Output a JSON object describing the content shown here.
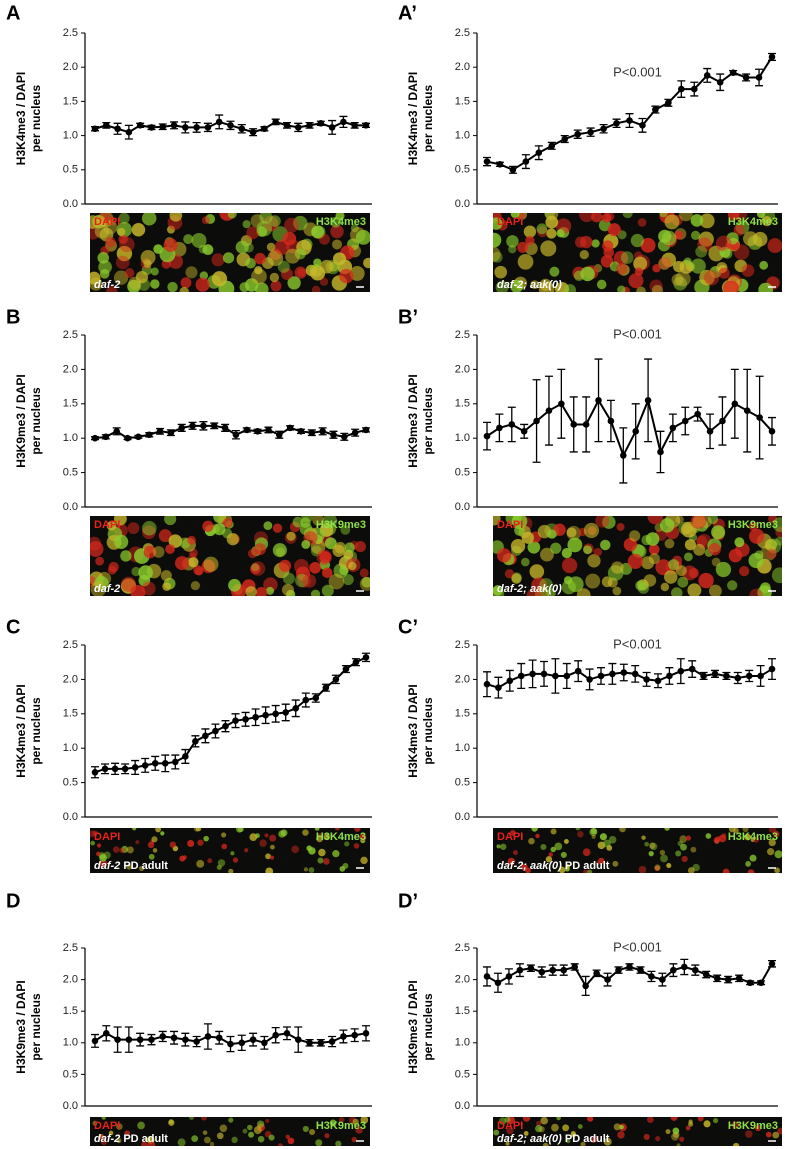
{
  "chart_data": [
    {
      "type": "line",
      "label": "A",
      "ylabel": [
        "H3K4me3 / DAPI",
        "per nucleus"
      ],
      "color": "#000000",
      "ylim": [
        0,
        2.5
      ],
      "yticks": [
        {
          "value": 0,
          "label": "0.0"
        },
        0.5,
        {
          "value": 1,
          "label": "1.0"
        },
        1.5,
        {
          "value": 2,
          "label": "2.0"
        },
        2.5
      ],
      "values": [
        1.1,
        1.15,
        1.1,
        1.05,
        1.15,
        1.12,
        1.13,
        1.15,
        1.12,
        1.12,
        1.12,
        1.2,
        1.15,
        1.1,
        1.05,
        1.1,
        1.2,
        1.15,
        1.12,
        1.15,
        1.18,
        1.12,
        1.2,
        1.15,
        1.15
      ],
      "errors": [
        0.03,
        0.04,
        0.08,
        0.1,
        0.03,
        0.03,
        0.04,
        0.05,
        0.08,
        0.07,
        0.06,
        0.1,
        0.06,
        0.06,
        0.05,
        0.03,
        0.04,
        0.04,
        0.06,
        0.04,
        0.03,
        0.1,
        0.08,
        0.04,
        0.03
      ],
      "image": {
        "channels": [
          "DAPI",
          "H3K4me3"
        ],
        "genotype": "daf-2"
      }
    },
    {
      "type": "line",
      "label": "A’",
      "ylabel": [
        "H3K4me3 / DAPI",
        "per nucleus"
      ],
      "color": "#000000",
      "annotation": "P<0.001",
      "ylim": [
        0,
        2.5
      ],
      "yticks": [
        {
          "value": 0,
          "label": "0.0"
        },
        0.5,
        {
          "value": 1,
          "label": "1.0"
        },
        1.5,
        {
          "value": 2,
          "label": "2.0"
        },
        2.5
      ],
      "values": [
        0.62,
        0.58,
        0.5,
        0.62,
        0.75,
        0.85,
        0.95,
        1.02,
        1.05,
        1.1,
        1.18,
        1.22,
        1.15,
        1.38,
        1.48,
        1.68,
        1.68,
        1.88,
        1.78,
        1.92,
        1.85,
        1.85,
        2.15
      ],
      "errors": [
        0.06,
        0.03,
        0.05,
        0.1,
        0.1,
        0.05,
        0.05,
        0.06,
        0.06,
        0.06,
        0.06,
        0.1,
        0.1,
        0.05,
        0.05,
        0.12,
        0.1,
        0.1,
        0.12,
        0.03,
        0.05,
        0.12,
        0.05
      ],
      "image": {
        "channels": [
          "DAPI",
          "H3K4me3"
        ],
        "genotype": "daf-2; aak(0)"
      }
    },
    {
      "type": "line",
      "label": "B",
      "ylabel": [
        "H3K9me3 / DAPI",
        "per nucleus"
      ],
      "color": "#000000",
      "ylim": [
        0,
        2.5
      ],
      "yticks": [
        {
          "value": 0,
          "label": "0.0"
        },
        0.5,
        {
          "value": 1,
          "label": "1.0"
        },
        1.5,
        {
          "value": 2,
          "label": "2.0"
        },
        2.5
      ],
      "values": [
        1.0,
        1.02,
        1.1,
        1.0,
        1.02,
        1.05,
        1.1,
        1.08,
        1.15,
        1.18,
        1.18,
        1.18,
        1.15,
        1.05,
        1.12,
        1.1,
        1.12,
        1.05,
        1.15,
        1.1,
        1.08,
        1.1,
        1.05,
        1.02,
        1.08,
        1.12
      ],
      "errors": [
        0.02,
        0.03,
        0.05,
        0.02,
        0.02,
        0.03,
        0.04,
        0.04,
        0.05,
        0.05,
        0.06,
        0.04,
        0.05,
        0.06,
        0.03,
        0.03,
        0.04,
        0.05,
        0.03,
        0.03,
        0.04,
        0.05,
        0.05,
        0.05,
        0.05,
        0.03
      ],
      "image": {
        "channels": [
          "DAPI",
          "H3K9me3"
        ],
        "genotype": "daf-2"
      }
    },
    {
      "type": "line",
      "label": "B’",
      "ylabel": [
        "H3K9me3 / DAPI",
        "per nucleus"
      ],
      "color": "#000000",
      "annotation": "P<0.001",
      "ylim": [
        0,
        2.5
      ],
      "yticks": [
        {
          "value": 0,
          "label": "0.0"
        },
        0.5,
        {
          "value": 1,
          "label": "1.0"
        },
        1.5,
        {
          "value": 2,
          "label": "2.0"
        },
        2.5
      ],
      "values": [
        1.03,
        1.15,
        1.2,
        1.1,
        1.25,
        1.4,
        1.5,
        1.2,
        1.2,
        1.55,
        1.25,
        0.75,
        1.1,
        1.55,
        0.8,
        1.15,
        1.25,
        1.35,
        1.1,
        1.25,
        1.5,
        1.4,
        1.3,
        1.1
      ],
      "errors": [
        0.2,
        0.2,
        0.25,
        0.1,
        0.6,
        0.5,
        0.5,
        0.4,
        0.4,
        0.6,
        0.3,
        0.4,
        0.4,
        0.6,
        0.3,
        0.2,
        0.2,
        0.1,
        0.25,
        0.35,
        0.5,
        0.6,
        0.6,
        0.2
      ],
      "image": {
        "channels": [
          "DAPI",
          "H3K9me3"
        ],
        "genotype": "daf-2; aak(0)"
      }
    },
    {
      "type": "line",
      "label": "C",
      "ylabel": [
        "H3K4me3 / DAPI",
        "per nucleus"
      ],
      "color": "#000000",
      "ylim": [
        0,
        2.5
      ],
      "yticks": [
        {
          "value": 0,
          "label": "0.0"
        },
        0.5,
        {
          "value": 1,
          "label": "1.0"
        },
        1.5,
        {
          "value": 2,
          "label": "2.0"
        },
        2.5
      ],
      "values": [
        0.65,
        0.7,
        0.7,
        0.7,
        0.72,
        0.75,
        0.78,
        0.78,
        0.8,
        0.88,
        1.1,
        1.18,
        1.25,
        1.32,
        1.4,
        1.42,
        1.45,
        1.48,
        1.5,
        1.52,
        1.58,
        1.7,
        1.73,
        1.88,
        2.0,
        2.15,
        2.25,
        2.32
      ],
      "errors": [
        0.08,
        0.07,
        0.08,
        0.07,
        0.1,
        0.1,
        0.1,
        0.12,
        0.1,
        0.1,
        0.08,
        0.1,
        0.1,
        0.08,
        0.1,
        0.1,
        0.12,
        0.12,
        0.12,
        0.12,
        0.12,
        0.1,
        0.06,
        0.05,
        0.06,
        0.05,
        0.05,
        0.06
      ],
      "image": {
        "channels": [
          "DAPI",
          "H3K4me3"
        ],
        "genotype": "daf-2",
        "stage": "PD adult"
      }
    },
    {
      "type": "line",
      "label": "C’",
      "ylabel": [
        "H3K4me3 / DAPI",
        "per nucleus"
      ],
      "color": "#000000",
      "annotation": "P<0.001",
      "ylim": [
        0,
        2.5
      ],
      "yticks": [
        {
          "value": 0,
          "label": "0.0"
        },
        0.5,
        {
          "value": 1,
          "label": "1.0"
        },
        1.5,
        {
          "value": 2,
          "label": "2.0"
        },
        2.5
      ],
      "values": [
        1.93,
        1.88,
        1.98,
        2.05,
        2.08,
        2.08,
        2.05,
        2.05,
        2.12,
        2.0,
        2.05,
        2.08,
        2.1,
        2.08,
        2.0,
        1.98,
        2.05,
        2.12,
        2.15,
        2.05,
        2.08,
        2.05,
        2.02,
        2.05,
        2.05,
        2.15
      ],
      "errors": [
        0.18,
        0.15,
        0.15,
        0.18,
        0.2,
        0.18,
        0.25,
        0.18,
        0.15,
        0.15,
        0.12,
        0.15,
        0.12,
        0.12,
        0.1,
        0.1,
        0.12,
        0.18,
        0.12,
        0.05,
        0.05,
        0.05,
        0.08,
        0.08,
        0.15,
        0.15
      ],
      "image": {
        "channels": [
          "DAPI",
          "H3K4me3"
        ],
        "genotype": "daf-2; aak(0)",
        "stage": "PD adult"
      }
    },
    {
      "type": "line",
      "label": "D",
      "ylabel": [
        "H3K9me3 / DAPI",
        "per nucleus"
      ],
      "color": "#000000",
      "ylim": [
        0,
        2.5
      ],
      "yticks": [
        {
          "value": 0,
          "label": "0.0"
        },
        0.5,
        {
          "value": 1,
          "label": "1.0"
        },
        1.5,
        {
          "value": 2,
          "label": "2.0"
        },
        2.5
      ],
      "values": [
        1.03,
        1.15,
        1.05,
        1.05,
        1.05,
        1.05,
        1.1,
        1.08,
        1.05,
        1.02,
        1.1,
        1.08,
        0.98,
        1.0,
        1.05,
        1.0,
        1.12,
        1.15,
        1.05,
        1.0,
        1.0,
        1.02,
        1.1,
        1.12,
        1.15
      ],
      "errors": [
        0.1,
        0.12,
        0.2,
        0.2,
        0.1,
        0.08,
        0.08,
        0.1,
        0.1,
        0.08,
        0.2,
        0.1,
        0.12,
        0.12,
        0.1,
        0.1,
        0.12,
        0.1,
        0.2,
        0.05,
        0.05,
        0.08,
        0.1,
        0.1,
        0.12
      ],
      "image": {
        "channels": [
          "DAPI",
          "H3K9me3"
        ],
        "genotype": "daf-2",
        "stage": "PD adult"
      }
    },
    {
      "type": "line",
      "label": "D’",
      "ylabel": [
        "H3K9me3 / DAPI",
        "per nucleus"
      ],
      "color": "#000000",
      "annotation": "P<0.001",
      "ylim": [
        0,
        2.5
      ],
      "yticks": [
        {
          "value": 0,
          "label": "0.0"
        },
        0.5,
        {
          "value": 1,
          "label": "1.0"
        },
        1.5,
        {
          "value": 2,
          "label": "2.0"
        },
        2.5
      ],
      "values": [
        2.05,
        1.95,
        2.05,
        2.15,
        2.18,
        2.12,
        2.15,
        2.15,
        2.2,
        1.9,
        2.1,
        2.0,
        2.15,
        2.2,
        2.15,
        2.05,
        2.0,
        2.15,
        2.2,
        2.15,
        2.08,
        2.02,
        2.0,
        2.02,
        1.95,
        1.95,
        2.25
      ],
      "errors": [
        0.15,
        0.15,
        0.12,
        0.1,
        0.05,
        0.08,
        0.08,
        0.08,
        0.05,
        0.15,
        0.05,
        0.1,
        0.05,
        0.05,
        0.05,
        0.08,
        0.1,
        0.1,
        0.12,
        0.08,
        0.05,
        0.05,
        0.05,
        0.05,
        0.03,
        0.03,
        0.05
      ],
      "image": {
        "channels": [
          "DAPI",
          "H3K9me3"
        ],
        "genotype": "daf-2; aak(0)",
        "stage": "PD adult"
      }
    }
  ]
}
